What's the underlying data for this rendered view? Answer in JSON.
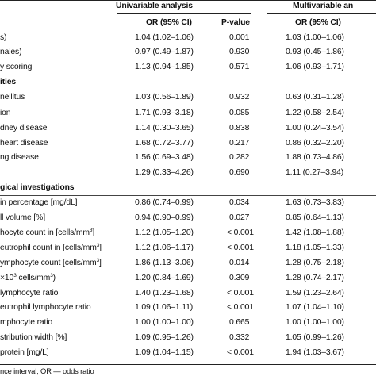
{
  "header": {
    "univariable": "Univariable analysis",
    "multivariable": "Multivariable an",
    "or_ci": "OR (95% CI)",
    "pvalue": "P-value",
    "or_ci_multi": "OR (95% CI)"
  },
  "rows": [
    {
      "label": "s)",
      "or": "1.04 (1.02–1.06)",
      "p": "0.001",
      "mor": "1.03 (1.00–1.06)"
    },
    {
      "label": "nales)",
      "or": "0.97 (0.49–1.87)",
      "p": "0.930",
      "mor": "0.93 (0.45–1.86)"
    },
    {
      "label": "y scoring",
      "or": "1.13 (0.94–1.85)",
      "p": "0.571",
      "mor": "1.06 (0.93–1.71)"
    },
    {
      "label": "ities",
      "section": true
    },
    {
      "label": "nellitus",
      "or": "1.03 (0.56–1.89)",
      "p": "0.932",
      "mor": "0.63 (0.31–1.28)"
    },
    {
      "label": "ion",
      "or": "1.71 (0.93–3.18)",
      "p": "0.085",
      "mor": "1.22 (0.58–2.54)"
    },
    {
      "label": "dney disease",
      "or": "1.14 (0.30–3.65)",
      "p": "0.838",
      "mor": "1.00 (0.24–3.54)"
    },
    {
      "label": "heart disease",
      "or": "1.68 (0.72–3.77)",
      "p": "0.217",
      "mor": "0.86 (0.32–2.20)"
    },
    {
      "label": "ng disease",
      "or": "1.56 (0.69–3.48)",
      "p": "0.282",
      "mor": "1.88 (0.73–4.86)"
    },
    {
      "label": "",
      "or": "1.29 (0.33–4.26)",
      "p": "0.690",
      "mor": "1.11 (0.27–3.94)"
    },
    {
      "label": "gical investigations",
      "section": true
    },
    {
      "label": "in percentage [mg/dL]",
      "or": "0.86 (0.74–0.99)",
      "p": "0.034",
      "mor": "1.63 (0.73–3.83)"
    },
    {
      "label": "ll volume [%]",
      "or": "0.94 (0.90–0.99)",
      "p": "0.027",
      "mor": "0.85 (0.64–1.13)"
    },
    {
      "label": "hocyte count in [cells/mm",
      "sup": "3",
      "tail": "]",
      "or": "1.12 (1.05–1.20)",
      "p": "< 0.001",
      "mor": "1.42 (1.08–1.88)"
    },
    {
      "label": "eutrophil count in [cells/mm",
      "sup": "3",
      "tail": "]",
      "or": "1.12 (1.06–1.17)",
      "p": "< 0.001",
      "mor": "1.18 (1.05–1.33)"
    },
    {
      "label": "ymphocyte count [cells/mm",
      "sup": "3",
      "tail": "]",
      "or": "1.86 (1.13–3.06)",
      "p": "0.014",
      "mor": "1.28 (0.75–2.18)"
    },
    {
      "label": "×10",
      "sup": "3",
      "tail": " cells/mm",
      "sup2": "3",
      "tail2": ")",
      "or": "1.20 (0.84–1.69)",
      "p": "0.309",
      "mor": "1.28 (0.74–2.17)"
    },
    {
      "label": "lymphocyte ratio",
      "or": "1.40 (1.23–1.68)",
      "p": "< 0.001",
      "mor": "1.59 (1.23–2.64)"
    },
    {
      "label": "eutrophil lymphocyte ratio",
      "or": "1.09 (1.06–1.11)",
      "p": "< 0.001",
      "mor": "1.07 (1.04–1.10)"
    },
    {
      "label": "mphocyte ratio",
      "or": "1.00 (1.00–1.00)",
      "p": "0.665",
      "mor": "1.00 (1.00–1.00)"
    },
    {
      "label": "stribution width [%]",
      "or": "1.09 (0.95–1.26)",
      "p": "0.332",
      "mor": "1.05 (0.99–1.26)"
    },
    {
      "label": "protein [mg/L]",
      "or": "1.09 (1.04–1.15)",
      "p": "< 0.001",
      "mor": "1.94 (1.03–3.67)"
    }
  ],
  "footnote": "nce interval; OR — odds ratio"
}
